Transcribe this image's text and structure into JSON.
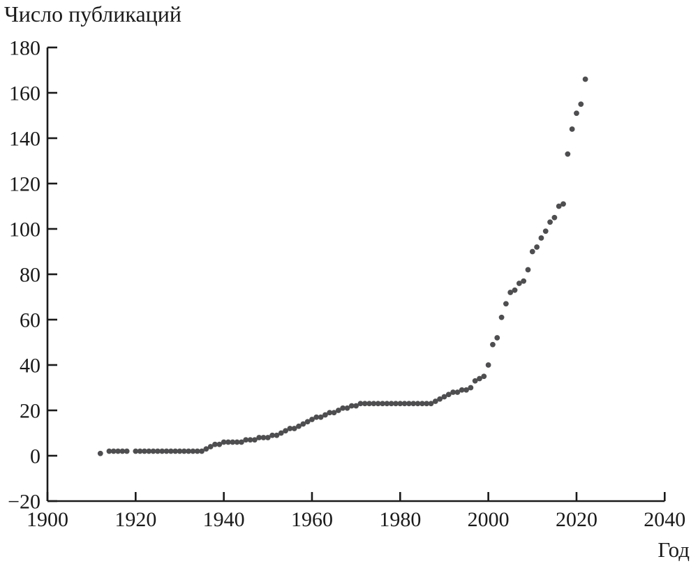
{
  "page": {
    "background_color": "#ffffff",
    "text_color": "#1a1a1a"
  },
  "chart_data": {
    "type": "scatter",
    "title": "Число публикаций",
    "xlabel": "Год",
    "ylabel": "Число публикаций",
    "xlim": [
      1900,
      2040
    ],
    "ylim": [
      -20,
      180
    ],
    "grid": false,
    "legend": "none",
    "marker_color": "#4e4e50",
    "axis_color": "#1a1a1a",
    "x_tick_values": [
      1900,
      1920,
      1940,
      1960,
      1980,
      2000,
      2020,
      2040
    ],
    "x_tick_labels": [
      "1900",
      "1920",
      "1940",
      "1960",
      "1980",
      "2000",
      "2020",
      "2040"
    ],
    "y_tick_values": [
      -20,
      0,
      20,
      40,
      60,
      80,
      100,
      120,
      140,
      160,
      180
    ],
    "y_tick_labels": [
      "−20",
      "0",
      "20",
      "40",
      "60",
      "80",
      "100",
      "120",
      "140",
      "160",
      "180"
    ],
    "points": [
      [
        1912,
        1
      ],
      [
        1914,
        2
      ],
      [
        1915,
        2
      ],
      [
        1916,
        2
      ],
      [
        1917,
        2
      ],
      [
        1918,
        2
      ],
      [
        1920,
        2
      ],
      [
        1921,
        2
      ],
      [
        1922,
        2
      ],
      [
        1923,
        2
      ],
      [
        1924,
        2
      ],
      [
        1925,
        2
      ],
      [
        1926,
        2
      ],
      [
        1927,
        2
      ],
      [
        1928,
        2
      ],
      [
        1929,
        2
      ],
      [
        1930,
        2
      ],
      [
        1931,
        2
      ],
      [
        1932,
        2
      ],
      [
        1933,
        2
      ],
      [
        1934,
        2
      ],
      [
        1935,
        2
      ],
      [
        1936,
        3
      ],
      [
        1937,
        4
      ],
      [
        1938,
        5
      ],
      [
        1939,
        5
      ],
      [
        1940,
        6
      ],
      [
        1941,
        6
      ],
      [
        1942,
        6
      ],
      [
        1943,
        6
      ],
      [
        1944,
        6
      ],
      [
        1945,
        7
      ],
      [
        1946,
        7
      ],
      [
        1947,
        7
      ],
      [
        1948,
        8
      ],
      [
        1949,
        8
      ],
      [
        1950,
        8
      ],
      [
        1951,
        9
      ],
      [
        1952,
        9
      ],
      [
        1953,
        10
      ],
      [
        1954,
        11
      ],
      [
        1955,
        12
      ],
      [
        1956,
        12
      ],
      [
        1957,
        13
      ],
      [
        1958,
        14
      ],
      [
        1959,
        15
      ],
      [
        1960,
        16
      ],
      [
        1961,
        17
      ],
      [
        1962,
        17
      ],
      [
        1963,
        18
      ],
      [
        1964,
        19
      ],
      [
        1965,
        19
      ],
      [
        1966,
        20
      ],
      [
        1967,
        21
      ],
      [
        1968,
        21
      ],
      [
        1969,
        22
      ],
      [
        1970,
        22
      ],
      [
        1971,
        23
      ],
      [
        1972,
        23
      ],
      [
        1973,
        23
      ],
      [
        1974,
        23
      ],
      [
        1975,
        23
      ],
      [
        1976,
        23
      ],
      [
        1977,
        23
      ],
      [
        1978,
        23
      ],
      [
        1979,
        23
      ],
      [
        1980,
        23
      ],
      [
        1981,
        23
      ],
      [
        1982,
        23
      ],
      [
        1983,
        23
      ],
      [
        1984,
        23
      ],
      [
        1985,
        23
      ],
      [
        1986,
        23
      ],
      [
        1987,
        23
      ],
      [
        1988,
        24
      ],
      [
        1989,
        25
      ],
      [
        1990,
        26
      ],
      [
        1991,
        27
      ],
      [
        1992,
        28
      ],
      [
        1993,
        28
      ],
      [
        1994,
        29
      ],
      [
        1995,
        29
      ],
      [
        1996,
        30
      ],
      [
        1997,
        33
      ],
      [
        1998,
        34
      ],
      [
        1999,
        35
      ],
      [
        2000,
        40
      ],
      [
        2001,
        49
      ],
      [
        2002,
        52
      ],
      [
        2003,
        61
      ],
      [
        2004,
        67
      ],
      [
        2005,
        72
      ],
      [
        2006,
        73
      ],
      [
        2007,
        76
      ],
      [
        2008,
        77
      ],
      [
        2009,
        82
      ],
      [
        2010,
        90
      ],
      [
        2011,
        92
      ],
      [
        2012,
        96
      ],
      [
        2013,
        99
      ],
      [
        2014,
        103
      ],
      [
        2015,
        105
      ],
      [
        2016,
        110
      ],
      [
        2017,
        111
      ],
      [
        2018,
        133
      ],
      [
        2019,
        144
      ],
      [
        2020,
        151
      ],
      [
        2021,
        155
      ],
      [
        2022,
        166
      ]
    ]
  }
}
